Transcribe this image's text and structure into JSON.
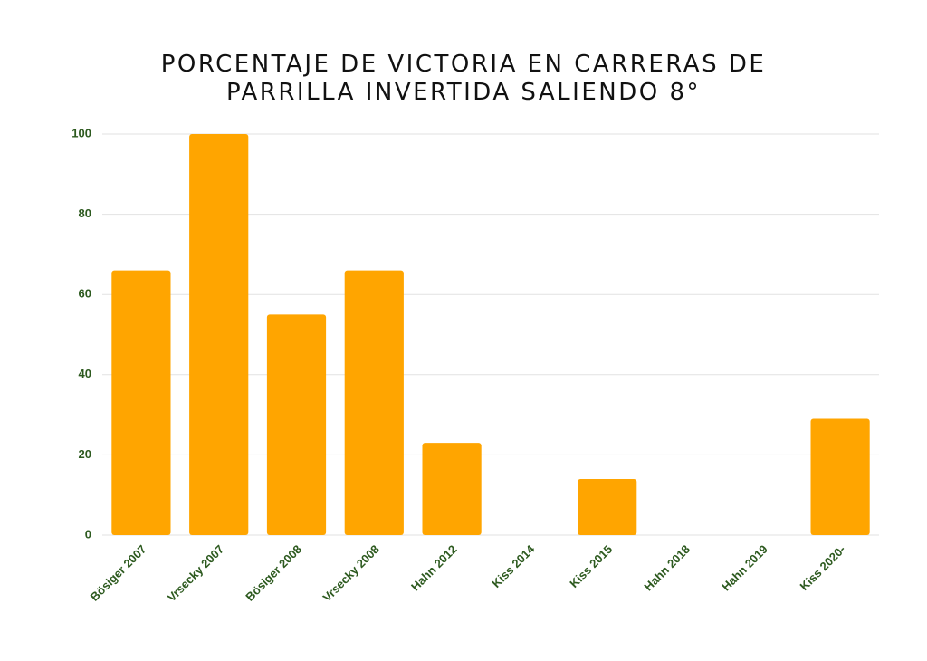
{
  "chart_data": {
    "type": "bar",
    "title": "PORCENTAJE DE VICTORIA EN CARRERAS DE PARRILLA INVERTIDA SALIENDO 8°",
    "categories": [
      "Bösiger 2007",
      "Vrsecky 2007",
      "Bösiger 2008",
      "Vrsecky 2008",
      "Hahn 2012",
      "Kiss 2014",
      "Kiss 2015",
      "Hahn 2018",
      "Hahn 2019",
      "Kiss 2020-"
    ],
    "values": [
      66,
      100,
      55,
      66,
      23,
      0,
      14,
      0,
      0,
      29
    ],
    "color": "#ffa500",
    "ylim": [
      0,
      100
    ],
    "yticks": [
      0,
      20,
      40,
      60,
      80,
      100
    ],
    "grid": true
  }
}
